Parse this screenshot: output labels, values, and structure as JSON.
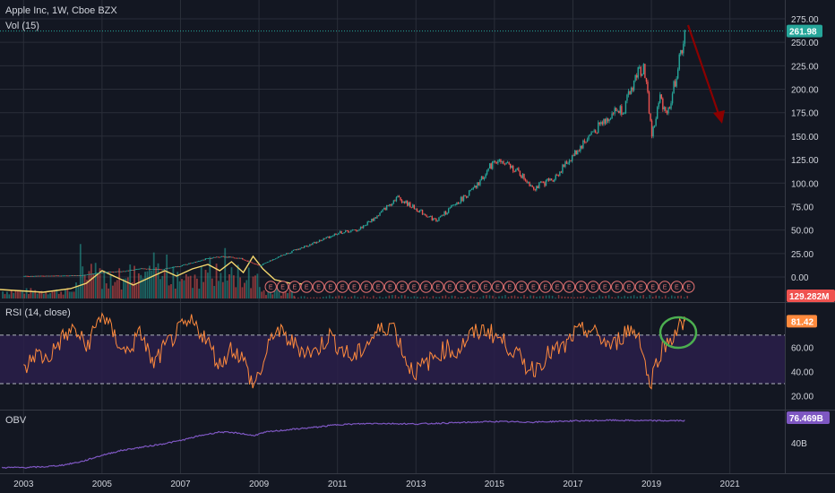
{
  "header": {
    "symbol_title": "Apple Inc, 1W, Cboe BZX",
    "volume_title": "Vol (15)"
  },
  "rsi_pane": {
    "title": "RSI (14, close)"
  },
  "obv_pane": {
    "title": "OBV"
  },
  "colors": {
    "background": "#131722",
    "grid": "#2a2e39",
    "up_candle": "#26a69a",
    "down_candle": "#ef5350",
    "price_tag": "#26a69a",
    "volume_tag": "#ef5350",
    "rsi_line": "#ff8a3d",
    "rsi_band": "#2a1f4a",
    "rsi_tag": "#ff8a3d",
    "obv_line": "#7e57c2",
    "obv_tag": "#7e57c2",
    "volume_ma": "#f5d76e",
    "arrow": "#8b0000",
    "circle_annotation": "#4caf50",
    "earnings_marker": "#e57373"
  },
  "chart_data": [
    {
      "type": "line",
      "name": "price",
      "x": [
        2003,
        2004,
        2004.5,
        2005,
        2005.5,
        2006,
        2006.5,
        2007,
        2007.5,
        2008,
        2008.5,
        2009,
        2009.5,
        2010,
        2010.5,
        2011,
        2011.5,
        2012,
        2012.5,
        2013,
        2013.5,
        2014,
        2014.5,
        2015,
        2015.5,
        2016,
        2016.5,
        2017,
        2017.5,
        2018,
        2018.3,
        2018.6,
        2018.8,
        2019,
        2019.2,
        2019.4,
        2019.6,
        2019.85
      ],
      "values": [
        1,
        1.5,
        2,
        5,
        6,
        9,
        8,
        12,
        18,
        22,
        20,
        12,
        22,
        30,
        38,
        47,
        50,
        65,
        85,
        72,
        60,
        78,
        95,
        125,
        115,
        95,
        105,
        130,
        155,
        175,
        180,
        215,
        225,
        150,
        190,
        175,
        210,
        262
      ],
      "ylim": [
        0,
        275
      ],
      "current_value_label": "261.98",
      "y_ticks": [
        "275.00",
        "250.00",
        "225.00",
        "200.00",
        "175.00",
        "150.00",
        "125.00",
        "100.00",
        "75.00",
        "50.00",
        "25.00",
        "0.00"
      ]
    },
    {
      "type": "bar",
      "name": "volume",
      "current_value_label": "129.282M"
    },
    {
      "type": "line",
      "name": "rsi",
      "x": [
        2003,
        2003.3,
        2003.6,
        2004,
        2004.3,
        2004.6,
        2005,
        2005.3,
        2005.6,
        2006,
        2006.3,
        2006.6,
        2007,
        2007.3,
        2007.6,
        2008,
        2008.3,
        2008.6,
        2008.85,
        2009.1,
        2009.4,
        2009.8,
        2010,
        2010.4,
        2010.8,
        2011,
        2011.4,
        2011.8,
        2012,
        2012.4,
        2012.8,
        2013,
        2013.4,
        2013.8,
        2014,
        2014.4,
        2014.8,
        2015,
        2015.4,
        2015.8,
        2016,
        2016.4,
        2016.8,
        2017,
        2017.4,
        2017.8,
        2018,
        2018.4,
        2018.7,
        2018.95,
        2019.2,
        2019.5,
        2019.85
      ],
      "values": [
        40,
        55,
        50,
        68,
        75,
        60,
        88,
        70,
        55,
        72,
        45,
        60,
        75,
        80,
        70,
        45,
        60,
        50,
        28,
        45,
        75,
        65,
        60,
        55,
        70,
        62,
        50,
        65,
        72,
        80,
        45,
        40,
        50,
        60,
        55,
        70,
        75,
        70,
        60,
        45,
        42,
        55,
        60,
        70,
        75,
        65,
        60,
        75,
        70,
        28,
        55,
        68,
        81.42
      ],
      "ylim": [
        10,
        95
      ],
      "overbought": 70,
      "oversold": 30,
      "current_value_label": "81.42",
      "y_ticks": [
        "60.00",
        "40.00",
        "20.00"
      ]
    },
    {
      "type": "line",
      "name": "obv",
      "x": [
        2003,
        2003.5,
        2004,
        2004.5,
        2005,
        2005.5,
        2006,
        2006.5,
        2007,
        2007.5,
        2008,
        2008.5,
        2008.85,
        2009.2,
        2009.8,
        2010.5,
        2011,
        2012,
        2013,
        2014,
        2015,
        2016,
        2017,
        2018,
        2018.8,
        2019.2,
        2019.85
      ],
      "values": [
        0,
        1,
        4,
        10,
        20,
        28,
        33,
        38,
        44,
        52,
        58,
        56,
        52,
        58,
        62,
        66,
        70,
        72,
        71,
        73,
        75,
        74,
        76,
        77,
        76.5,
        76.3,
        76.469
      ],
      "ylim": [
        -5,
        90
      ],
      "current_value_label": "76.469B",
      "y_ticks": [
        "40B"
      ]
    }
  ],
  "x_axis": {
    "ticks": [
      "2003",
      "2005",
      "2007",
      "2009",
      "2011",
      "2013",
      "2015",
      "2017",
      "2019",
      "2021"
    ],
    "tick_years": [
      2003,
      2005,
      2007,
      2009,
      2011,
      2013,
      2015,
      2017,
      2019,
      2021
    ],
    "range": [
      2002.4,
      2022.4
    ]
  },
  "annotations": {
    "earnings_letter": "E",
    "earnings_count": 36,
    "arrow_direction": "down-right",
    "circle_target": "rsi-peak"
  }
}
